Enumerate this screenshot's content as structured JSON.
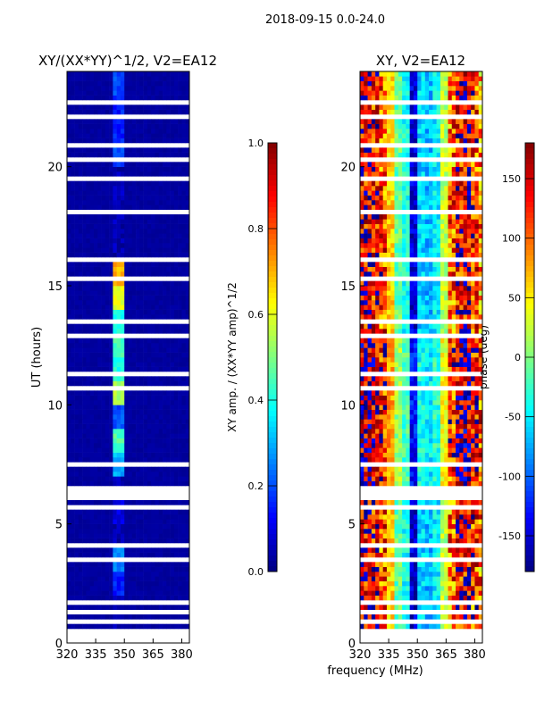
{
  "suptitle": "2018-09-15 0.0-24.0",
  "chart_data": [
    {
      "type": "heatmap",
      "title": "XY/(XX*YY)^1/2, V2=EA12",
      "xlabel": "",
      "ylabel": "UT (hours)",
      "xlim": [
        320,
        384
      ],
      "ylim": [
        0,
        24
      ],
      "xticks": [
        "320",
        "335",
        "350",
        "365",
        "380"
      ],
      "yticks": [
        "0",
        "5",
        "10",
        "15",
        "20"
      ],
      "colorbar": {
        "label": "XY amp. / (XX*YY amp)^1/2",
        "range": [
          0,
          1
        ],
        "ticks": [
          "0.0",
          "0.2",
          "0.4",
          "0.6",
          "0.8",
          "1.0"
        ]
      },
      "background_amp": 0.02,
      "spike_channel_mhz": [
        345,
        350
      ],
      "spike_amp_by_hour": [
        0.05,
        0.05,
        0.15,
        0.25,
        0.05,
        0.1,
        0.05,
        0.3,
        0.45,
        0.2,
        0.55,
        0.4,
        0.45,
        0.4,
        0.6,
        0.7,
        0.05,
        0.05,
        0.05,
        0.05,
        0.2,
        0.15,
        0.15,
        0.2
      ]
    },
    {
      "type": "heatmap",
      "title": "XY, V2=EA12",
      "xlabel": "frequency (MHz)",
      "ylabel": "",
      "xlim": [
        320,
        384
      ],
      "ylim": [
        0,
        24
      ],
      "xticks": [
        "320",
        "335",
        "350",
        "365",
        "380"
      ],
      "yticks": [
        "0",
        "5",
        "10",
        "15",
        "20"
      ],
      "colorbar": {
        "label": "phase (deg)",
        "range": [
          -180,
          180
        ],
        "ticks": [
          "-150",
          "-100",
          "-50",
          "0",
          "50",
          "100",
          "150"
        ]
      },
      "phase_profile_freq_mhz": [
        322,
        326,
        330,
        334,
        338,
        342,
        346,
        350,
        354,
        358,
        362,
        366,
        370,
        374,
        378,
        382
      ],
      "phase_profile_deg": [
        150,
        140,
        110,
        60,
        -10,
        -40,
        -150,
        -60,
        -70,
        -50,
        20,
        100,
        140,
        150,
        120,
        90
      ],
      "noise_deg": 45
    }
  ],
  "flagged_hours": [
    [
      0,
      0.6
    ],
    [
      0.9,
      1.0
    ],
    [
      1.3,
      1.4
    ],
    [
      1.6,
      1.75
    ],
    [
      2.0,
      2.05
    ],
    [
      2.6,
      2.7
    ],
    [
      3.2,
      3.3
    ],
    [
      3.5,
      3.55
    ],
    [
      4.1,
      4.2
    ],
    [
      4.6,
      4.7
    ],
    [
      5.0,
      5.05
    ],
    [
      5.6,
      5.8
    ],
    [
      6.1,
      6.6
    ],
    [
      7.0,
      7.05
    ],
    [
      7.5,
      7.6
    ],
    [
      8.0,
      8.1
    ],
    [
      9.0,
      9.05
    ],
    [
      9.8,
      9.9
    ],
    [
      10.7,
      10.8
    ],
    [
      11.3,
      11.35
    ],
    [
      12.2,
      12.3
    ],
    [
      12.9,
      13.0
    ],
    [
      13.5,
      13.7
    ],
    [
      14.0,
      14.05
    ],
    [
      14.6,
      14.65
    ],
    [
      15.3,
      15.4
    ],
    [
      16.0,
      16.2
    ],
    [
      17.2,
      17.3
    ],
    [
      17.6,
      17.7
    ],
    [
      18.0,
      18.3
    ],
    [
      18.8,
      18.9
    ],
    [
      19.5,
      19.55
    ],
    [
      20.3,
      20.4
    ],
    [
      20.9,
      21.0
    ],
    [
      21.6,
      21.7
    ],
    [
      22.1,
      22.2
    ],
    [
      22.6,
      22.8
    ],
    [
      23.2,
      23.25
    ]
  ]
}
